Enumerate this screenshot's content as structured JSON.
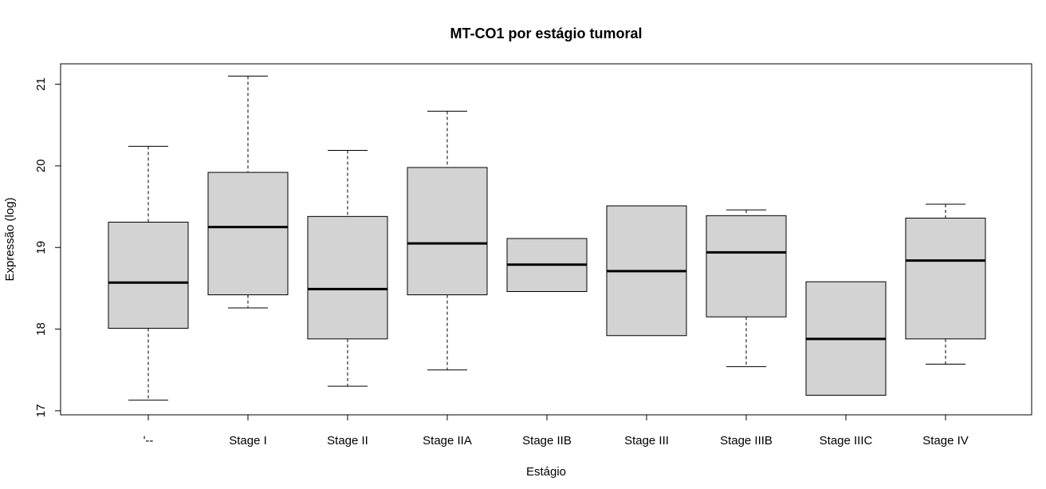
{
  "chart_data": {
    "type": "boxplot",
    "title": "MT-CO1 por estágio tumoral",
    "xlabel": "Estágio",
    "ylabel": "Expressão (log)",
    "ylim": [
      16.95,
      21.25
    ],
    "yticks": [
      17,
      18,
      19,
      20,
      21
    ],
    "grid": false,
    "legend": "none",
    "colors": {
      "box_fill": "#d3d3d3",
      "stroke": "#000000",
      "background": "#ffffff"
    },
    "categories": [
      "'--",
      "Stage I",
      "Stage II",
      "Stage IIA",
      "Stage IIB",
      "Stage III",
      "Stage IIIB",
      "Stage IIIC",
      "Stage IV"
    ],
    "boxes": [
      {
        "category": "'--",
        "whisker_low": 17.13,
        "q1": 18.01,
        "median": 18.57,
        "q3": 19.31,
        "whisker_high": 20.24
      },
      {
        "category": "Stage I",
        "whisker_low": 18.26,
        "q1": 18.42,
        "median": 19.25,
        "q3": 19.92,
        "whisker_high": 21.1
      },
      {
        "category": "Stage II",
        "whisker_low": 17.3,
        "q1": 17.88,
        "median": 18.49,
        "q3": 19.38,
        "whisker_high": 20.19
      },
      {
        "category": "Stage IIA",
        "whisker_low": 17.5,
        "q1": 18.42,
        "median": 19.05,
        "q3": 19.98,
        "whisker_high": 20.67
      },
      {
        "category": "Stage IIB",
        "whisker_low": 18.46,
        "q1": 18.46,
        "median": 18.79,
        "q3": 19.11,
        "whisker_high": 19.11
      },
      {
        "category": "Stage III",
        "whisker_low": 17.92,
        "q1": 17.92,
        "median": 18.71,
        "q3": 19.51,
        "whisker_high": 19.51
      },
      {
        "category": "Stage IIIB",
        "whisker_low": 17.54,
        "q1": 18.15,
        "median": 18.94,
        "q3": 19.39,
        "whisker_high": 19.46
      },
      {
        "category": "Stage IIIC",
        "whisker_low": 17.19,
        "q1": 17.19,
        "median": 17.88,
        "q3": 18.58,
        "whisker_high": 18.58
      },
      {
        "category": "Stage IV",
        "whisker_low": 17.57,
        "q1": 17.88,
        "median": 18.84,
        "q3": 19.36,
        "whisker_high": 19.53
      }
    ]
  }
}
